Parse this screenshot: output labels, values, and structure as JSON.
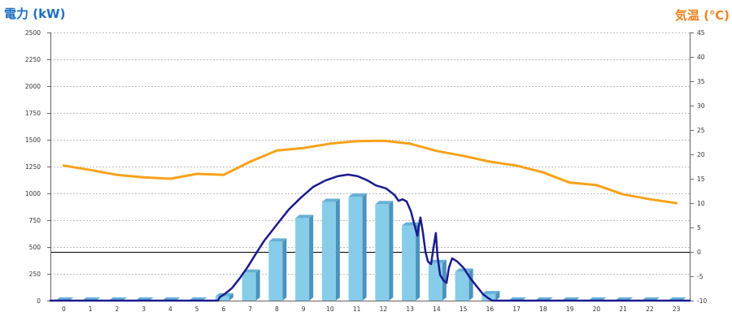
{
  "chart_data": {
    "type": "bar",
    "categories": [
      "0",
      "1",
      "2",
      "3",
      "4",
      "5",
      "6",
      "7",
      "8",
      "9",
      "10",
      "11",
      "12",
      "13",
      "14",
      "15",
      "16",
      "17",
      "18",
      "19",
      "20",
      "21",
      "22",
      "23"
    ],
    "xlabel": "",
    "y_left": {
      "label": "電力 (kW)",
      "range": [
        0,
        2500
      ],
      "ticks": [
        0,
        250,
        500,
        750,
        1000,
        1250,
        1500,
        1750,
        2000,
        2250,
        2500
      ]
    },
    "y_right": {
      "label": "気温 (℃)",
      "range": [
        -10,
        45
      ],
      "ticks": [
        -10,
        -5,
        0,
        5,
        10,
        15,
        20,
        25,
        30,
        35,
        40,
        45
      ]
    },
    "grid": true,
    "series": [
      {
        "type": "bar",
        "axis": "left",
        "values": [
          0,
          0,
          0,
          0,
          0,
          0,
          40,
          260,
          550,
          770,
          920,
          970,
          900,
          700,
          350,
          270,
          60,
          0,
          0,
          0,
          0,
          0,
          0,
          0
        ]
      },
      {
        "type": "line",
        "axis": "left",
        "color": "#1b1b8f",
        "points": [
          [
            -0.5,
            0
          ],
          [
            5.79,
            0
          ],
          [
            5.85,
            30
          ],
          [
            6.03,
            60
          ],
          [
            6.31,
            115
          ],
          [
            6.61,
            210
          ],
          [
            6.92,
            320
          ],
          [
            7.23,
            445
          ],
          [
            7.53,
            560
          ],
          [
            7.99,
            705
          ],
          [
            8.45,
            850
          ],
          [
            8.9,
            960
          ],
          [
            9.36,
            1060
          ],
          [
            9.82,
            1120
          ],
          [
            10.28,
            1160
          ],
          [
            10.68,
            1175
          ],
          [
            11.04,
            1160
          ],
          [
            11.41,
            1120
          ],
          [
            11.71,
            1075
          ],
          [
            12.11,
            1045
          ],
          [
            12.42,
            985
          ],
          [
            12.57,
            930
          ],
          [
            12.72,
            945
          ],
          [
            12.87,
            925
          ],
          [
            13.03,
            835
          ],
          [
            13.18,
            695
          ],
          [
            13.27,
            605
          ],
          [
            13.39,
            775
          ],
          [
            13.48,
            645
          ],
          [
            13.58,
            455
          ],
          [
            13.67,
            365
          ],
          [
            13.79,
            340
          ],
          [
            13.88,
            490
          ],
          [
            13.97,
            630
          ],
          [
            14.03,
            415
          ],
          [
            14.13,
            240
          ],
          [
            14.25,
            190
          ],
          [
            14.37,
            165
          ],
          [
            14.46,
            305
          ],
          [
            14.58,
            395
          ],
          [
            14.77,
            365
          ],
          [
            15.01,
            305
          ],
          [
            15.26,
            210
          ],
          [
            15.5,
            135
          ],
          [
            15.74,
            60
          ],
          [
            15.93,
            25
          ],
          [
            16.08,
            0
          ],
          [
            23.5,
            0
          ]
        ]
      },
      {
        "type": "line",
        "axis": "right",
        "color": "#f7a21b",
        "values": [
          17.7,
          16.8,
          15.8,
          15.3,
          15.0,
          16.0,
          15.8,
          18.5,
          20.8,
          21.3,
          22.2,
          22.7,
          22.8,
          22.2,
          20.7,
          19.7,
          18.5,
          17.7,
          16.3,
          14.2,
          13.7,
          11.8,
          10.8,
          10.0
        ]
      }
    ],
    "reference_lines": [
      {
        "axis": "right",
        "value": 0
      }
    ],
    "colors": {
      "left_axis_label": "#1e6fc0",
      "right_axis_label": "#f08320",
      "bar_front": "#87cde9",
      "bar_side": "#4b93bd",
      "bar_top": "#66b0d6",
      "reference_line": "#000000",
      "grid": "#bdbdbd",
      "axis": "#666666"
    }
  }
}
